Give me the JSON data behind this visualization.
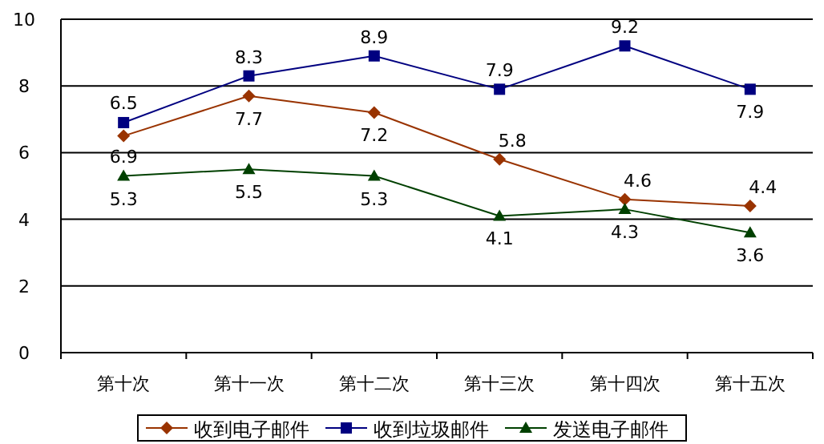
{
  "chart_data": {
    "type": "line",
    "categories": [
      "第十次",
      "第十一次",
      "第十二次",
      "第十三次",
      "第十四次",
      "第十五次"
    ],
    "series": [
      {
        "name": "收到电子邮件",
        "color": "#993300",
        "marker": "diamond",
        "values": [
          6.5,
          7.7,
          7.2,
          5.8,
          4.6,
          4.4
        ]
      },
      {
        "name": "收到垃圾邮件",
        "color": "#000080",
        "marker": "square",
        "values": [
          6.9,
          8.3,
          8.9,
          7.9,
          9.2,
          7.9
        ]
      },
      {
        "name": "发送电子邮件",
        "color": "#004000",
        "marker": "triangle",
        "values": [
          5.3,
          5.5,
          5.3,
          4.1,
          4.3,
          3.6
        ]
      }
    ],
    "ylim": [
      0,
      10
    ],
    "yticks": [
      0,
      2,
      4,
      6,
      8,
      10
    ],
    "grid": "y",
    "legend": "bottom",
    "data_labels": true,
    "line_style": "solid"
  }
}
